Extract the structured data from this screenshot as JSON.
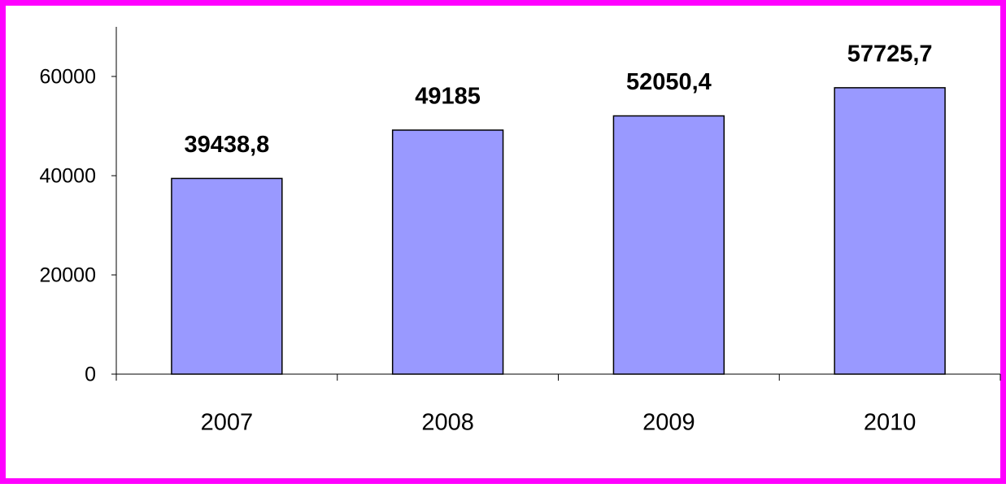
{
  "chart_data": {
    "type": "bar",
    "categories": [
      "2007",
      "2008",
      "2009",
      "2010"
    ],
    "values": [
      39438.8,
      49185,
      52050.4,
      57725.7
    ],
    "value_labels": [
      "39438,8",
      "49185",
      "52050,4",
      "57725,7"
    ],
    "color": "#9999ff",
    "ylim": [
      0,
      70000
    ],
    "yticks": [
      0,
      20000,
      40000,
      60000
    ],
    "grid": false
  }
}
